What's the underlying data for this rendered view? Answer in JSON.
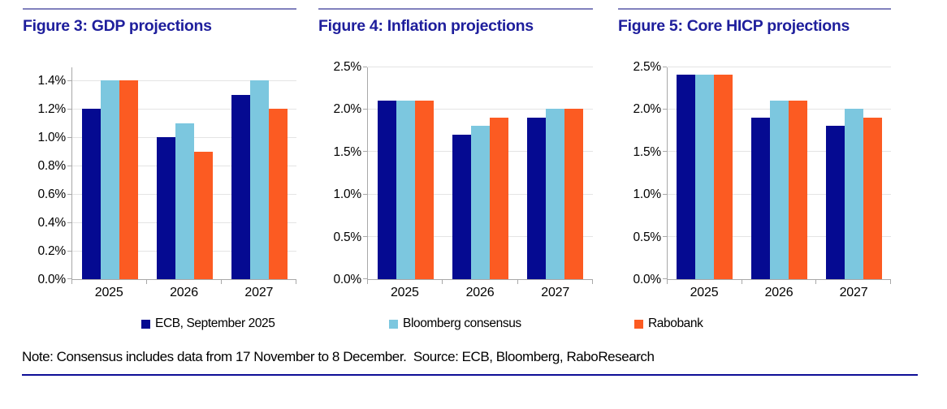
{
  "note": "Note: Consensus includes data from 17 November to 8 December.  Source: ECB, Bloomberg, RaboResearch",
  "legend": [
    {
      "label": "ECB, September 2025",
      "color": "#050a91"
    },
    {
      "label": "Bloomberg consensus",
      "color": "#7cc7df"
    },
    {
      "label": "Rabobank",
      "color": "#fc5b22"
    }
  ],
  "colors": {
    "title": "#1e1e9c",
    "header_rule": "#8181bd",
    "bottom_rule": "#0d0d96",
    "gridline": "#e4e4e4",
    "axis": "#a8a8a8"
  },
  "chart_data": [
    {
      "type": "bar",
      "title": "Figure 3: GDP projections",
      "categories": [
        "2025",
        "2026",
        "2027"
      ],
      "series": [
        {
          "name": "ECB, September 2025",
          "color": "#050a91",
          "values": [
            1.2,
            1.0,
            1.3
          ]
        },
        {
          "name": "Bloomberg consensus",
          "color": "#7cc7df",
          "values": [
            1.4,
            1.1,
            1.4
          ]
        },
        {
          "name": "Rabobank",
          "color": "#fc5b22",
          "values": [
            1.4,
            0.9,
            1.2
          ]
        }
      ],
      "xlabel": "",
      "ylabel": "",
      "ylim": [
        0,
        1.5
      ],
      "yticks": [
        0.0,
        0.2,
        0.4,
        0.6,
        0.8,
        1.0,
        1.2,
        1.4
      ],
      "ytick_suffix": "%",
      "grid": true,
      "legend_position": "bottom"
    },
    {
      "type": "bar",
      "title": "Figure 4: Inflation projections",
      "categories": [
        "2025",
        "2026",
        "2027"
      ],
      "series": [
        {
          "name": "ECB, September 2025",
          "color": "#050a91",
          "values": [
            2.1,
            1.7,
            1.9
          ]
        },
        {
          "name": "Bloomberg consensus",
          "color": "#7cc7df",
          "values": [
            2.1,
            1.8,
            2.0
          ]
        },
        {
          "name": "Rabobank",
          "color": "#fc5b22",
          "values": [
            2.1,
            1.9,
            2.0
          ]
        }
      ],
      "xlabel": "",
      "ylabel": "",
      "ylim": [
        0,
        2.5
      ],
      "yticks": [
        0.0,
        0.5,
        1.0,
        1.5,
        2.0,
        2.5
      ],
      "ytick_suffix": "%",
      "grid": true,
      "legend_position": "bottom"
    },
    {
      "type": "bar",
      "title": "Figure 5: Core HICP projections",
      "categories": [
        "2025",
        "2026",
        "2027"
      ],
      "series": [
        {
          "name": "ECB, September 2025",
          "color": "#050a91",
          "values": [
            2.4,
            1.9,
            1.8
          ]
        },
        {
          "name": "Bloomberg consensus",
          "color": "#7cc7df",
          "values": [
            2.4,
            2.1,
            2.0
          ]
        },
        {
          "name": "Rabobank",
          "color": "#fc5b22",
          "values": [
            2.4,
            2.1,
            1.9
          ]
        }
      ],
      "xlabel": "",
      "ylabel": "",
      "ylim": [
        0,
        2.5
      ],
      "yticks": [
        0.0,
        0.5,
        1.0,
        1.5,
        2.0,
        2.5
      ],
      "ytick_suffix": "%",
      "grid": true,
      "legend_position": "bottom"
    }
  ]
}
